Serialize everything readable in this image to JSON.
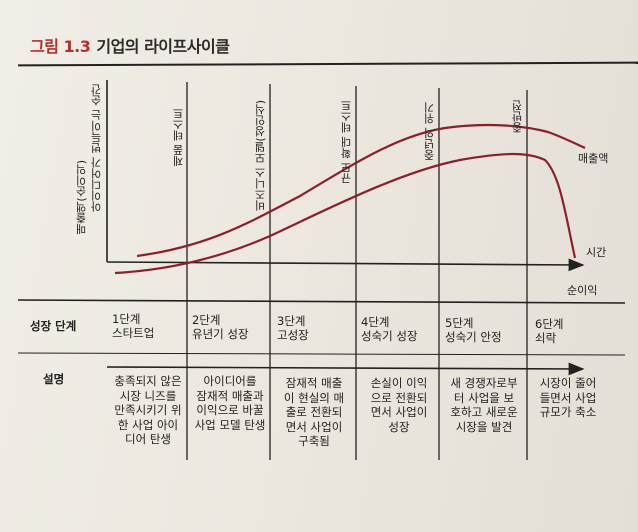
{
  "figure": {
    "label": "그림 1.3",
    "title": "기업의 라이프사이클"
  },
  "axes": {
    "y_label": "매출액(순이익)",
    "x_label": "시간"
  },
  "curves": {
    "upper_label": "매출액",
    "lower_label": "순이익"
  },
  "milestones": [
    "아이디어가 번득이는 순간",
    "제품 테스트",
    "비즈니스 모델(성인식)",
    "규모 확대 테스트",
    "중년의 위기",
    "종반전"
  ],
  "table": {
    "row_labels": {
      "stage": "성장 단계",
      "description": "설명"
    },
    "stages": [
      {
        "name": "1단계\n스타트업",
        "description": "충족되지 않은\n시장 니즈를\n만족시키기 위\n한 사업 아이\n디어 탄생"
      },
      {
        "name": "2단계\n유년기 성장",
        "description": "아이디어를\n잠재적 매출과\n이익으로 바꿀\n사업 모델 탄생"
      },
      {
        "name": "3단계\n고성장",
        "description": "잠재적 매출\n이 현실의 매\n출로 전환되\n면서 사업이\n구축됨"
      },
      {
        "name": "4단계\n성숙기 성장",
        "description": "손실이 이익\n으로 전환되\n면서 사업이\n성장"
      },
      {
        "name": "5단계\n성숙기 안정",
        "description": "새 경쟁자로부\n터 사업을 보\n호하고 새로운\n시장을 발견"
      },
      {
        "name": "6단계\n쇠락",
        "description": "시장이 줄어\n들면서 사업\n규모가 축소"
      }
    ]
  },
  "colors": {
    "accent": "#b0322e",
    "curve": "#8e1f2a",
    "ink": "#222222"
  }
}
